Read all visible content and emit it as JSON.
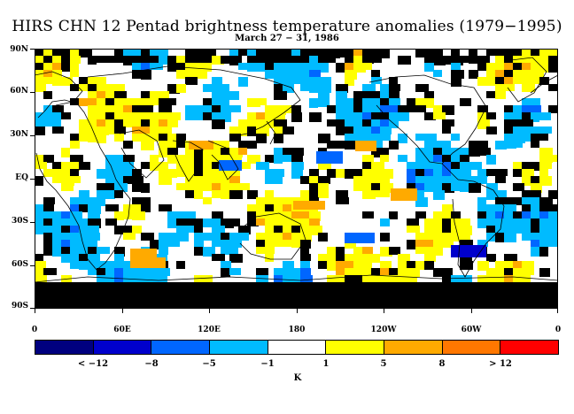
{
  "title": "HIRS CHN 12 Pentad brightness temperature anomalies (1979−1995)",
  "subtitle": "March 27 − 31, 1986",
  "lat_labels": [
    "90N",
    "60N",
    "30N",
    "EQ",
    "30S",
    "60S",
    "90S"
  ],
  "lon_labels": [
    "0",
    "60E",
    "120E",
    "180",
    "120W",
    "60W",
    "0"
  ],
  "colorbar": {
    "colors": [
      "#00007f",
      "#0000cc",
      "#0066ff",
      "#00bbff",
      "#ffffff",
      "#ffff00",
      "#ffaa00",
      "#ff7700",
      "#ff0000"
    ],
    "labels": [
      "< −12",
      "−8",
      "−5",
      "−1",
      "1",
      "5",
      "8",
      "> 12"
    ],
    "units": "K"
  },
  "map": {
    "missing_color": "#000000",
    "land_outline": "#000000"
  }
}
